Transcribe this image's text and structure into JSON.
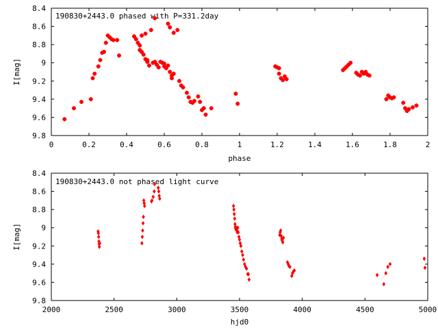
{
  "chart_data": [
    {
      "type": "scatter",
      "title": "190830+2443.0 phased with P=331.2day",
      "xlabel": "phase",
      "ylabel": "I[mag]",
      "xlim": [
        0,
        2
      ],
      "ylim": [
        9.8,
        8.4
      ],
      "y_inverted": true,
      "grid": false,
      "xticks": [
        0,
        0.2,
        0.4,
        0.6,
        0.8,
        1,
        1.2,
        1.4,
        1.6,
        1.8,
        2
      ],
      "xtick_labels": [
        "0",
        "0.2",
        "0.4",
        "0.6",
        "0.8",
        "1",
        "1.2",
        "1.4",
        "1.6",
        "1.8",
        "2"
      ],
      "yticks": [
        8.4,
        8.6,
        8.8,
        9,
        9.2,
        9.4,
        9.6,
        9.8
      ],
      "ytick_labels": [
        "8.4",
        "8.6",
        "8.8",
        "9",
        "9.2",
        "9.4",
        "9.6",
        "9.8"
      ],
      "marker_color": "#ff0000",
      "series": [
        {
          "points": [
            [
              0.07,
              9.62
            ],
            [
              0.12,
              9.5
            ],
            [
              0.16,
              9.43
            ],
            [
              0.21,
              9.4
            ],
            [
              0.22,
              9.17
            ],
            [
              0.23,
              9.12
            ],
            [
              0.25,
              9.04
            ],
            [
              0.26,
              8.97
            ],
            [
              0.27,
              8.89
            ],
            [
              0.28,
              8.88
            ],
            [
              0.29,
              8.78
            ],
            [
              0.3,
              8.7
            ],
            [
              0.31,
              8.72
            ],
            [
              0.32,
              8.74
            ],
            [
              0.33,
              8.75
            ],
            [
              0.35,
              8.75
            ],
            [
              0.36,
              8.92
            ],
            [
              0.44,
              8.71
            ],
            [
              0.45,
              8.74
            ],
            [
              0.46,
              8.78
            ],
            [
              0.47,
              8.81
            ],
            [
              0.47,
              8.86
            ],
            [
              0.48,
              8.88
            ],
            [
              0.48,
              8.7
            ],
            [
              0.49,
              8.91
            ],
            [
              0.5,
              8.96
            ],
            [
              0.5,
              8.68
            ],
            [
              0.51,
              8.99
            ],
            [
              0.51,
              8.97
            ],
            [
              0.52,
              9.03
            ],
            [
              0.53,
              8.64
            ],
            [
              0.54,
              9.0
            ],
            [
              0.55,
              8.99
            ],
            [
              0.55,
              8.51
            ],
            [
              0.56,
              9.02
            ],
            [
              0.57,
              9.05
            ],
            [
              0.58,
              8.99
            ],
            [
              0.59,
              9.0
            ],
            [
              0.6,
              9.04
            ],
            [
              0.6,
              9.01
            ],
            [
              0.61,
              9.06
            ],
            [
              0.62,
              9.03
            ],
            [
              0.62,
              8.57
            ],
            [
              0.63,
              9.1
            ],
            [
              0.63,
              8.61
            ],
            [
              0.64,
              9.14
            ],
            [
              0.64,
              9.17
            ],
            [
              0.65,
              8.67
            ],
            [
              0.65,
              9.12
            ],
            [
              0.67,
              8.64
            ],
            [
              0.68,
              9.2
            ],
            [
              0.69,
              9.25
            ],
            [
              0.7,
              9.27
            ],
            [
              0.72,
              9.33
            ],
            [
              0.73,
              9.38
            ],
            [
              0.74,
              9.43
            ],
            [
              0.75,
              9.44
            ],
            [
              0.76,
              9.42
            ],
            [
              0.78,
              9.37
            ],
            [
              0.79,
              9.43
            ],
            [
              0.8,
              9.52
            ],
            [
              0.81,
              9.5
            ],
            [
              0.82,
              9.57
            ],
            [
              0.85,
              9.5
            ],
            [
              0.98,
              9.34
            ],
            [
              0.99,
              9.45
            ],
            [
              1.19,
              9.04
            ],
            [
              1.2,
              9.05
            ],
            [
              1.21,
              9.06
            ],
            [
              1.21,
              9.12
            ],
            [
              1.22,
              9.17
            ],
            [
              1.23,
              9.19
            ],
            [
              1.24,
              9.15
            ],
            [
              1.25,
              9.18
            ],
            [
              1.55,
              9.08
            ],
            [
              1.56,
              9.06
            ],
            [
              1.57,
              9.04
            ],
            [
              1.58,
              9.02
            ],
            [
              1.59,
              9.0
            ],
            [
              1.62,
              9.11
            ],
            [
              1.63,
              9.13
            ],
            [
              1.64,
              9.14
            ],
            [
              1.65,
              9.1
            ],
            [
              1.66,
              9.12
            ],
            [
              1.67,
              9.1
            ],
            [
              1.68,
              9.13
            ],
            [
              1.69,
              9.14
            ],
            [
              1.78,
              9.4
            ],
            [
              1.79,
              9.36
            ],
            [
              1.8,
              9.38
            ],
            [
              1.81,
              9.39
            ],
            [
              1.82,
              9.38
            ],
            [
              1.87,
              9.44
            ],
            [
              1.88,
              9.5
            ],
            [
              1.89,
              9.53
            ],
            [
              1.9,
              9.51
            ],
            [
              1.92,
              9.49
            ],
            [
              1.94,
              9.47
            ]
          ]
        }
      ]
    },
    {
      "type": "scatter",
      "title": "190830+2443.0 not phased light curve",
      "xlabel": "hjd0",
      "ylabel": "I[mag]",
      "xlim": [
        2000,
        5000
      ],
      "ylim": [
        9.8,
        8.4
      ],
      "y_inverted": true,
      "grid": false,
      "xticks": [
        2000,
        2500,
        3000,
        3500,
        4000,
        4500,
        5000
      ],
      "xtick_labels": [
        "2000",
        "2500",
        "3000",
        "3500",
        "4000",
        "4500",
        "5000"
      ],
      "yticks": [
        8.4,
        8.6,
        8.8,
        9,
        9.2,
        9.4,
        9.6,
        9.8
      ],
      "ytick_labels": [
        "8.4",
        "8.6",
        "8.8",
        "9",
        "9.2",
        "9.4",
        "9.6",
        "9.8"
      ],
      "marker_color": "#ff0000",
      "series": [
        {
          "points": [
            [
              2373,
              9.04
            ],
            [
              2375,
              9.06
            ],
            [
              2377,
              9.1
            ],
            [
              2379,
              9.15
            ],
            [
              2381,
              9.18
            ],
            [
              2383,
              9.21
            ],
            [
              2386,
              9.17
            ],
            [
              2722,
              9.17
            ],
            [
              2725,
              9.1
            ],
            [
              2728,
              9.03
            ],
            [
              2731,
              8.95
            ],
            [
              2734,
              8.88
            ],
            [
              2737,
              8.7
            ],
            [
              2740,
              8.73
            ],
            [
              2743,
              8.76
            ],
            [
              2798,
              8.71
            ],
            [
              2802,
              8.7
            ],
            [
              2812,
              8.66
            ],
            [
              2820,
              8.6
            ],
            [
              2823,
              8.52
            ],
            [
              2852,
              8.56
            ],
            [
              2856,
              8.6
            ],
            [
              2860,
              8.65
            ],
            [
              2864,
              8.68
            ],
            [
              3452,
              8.76
            ],
            [
              3455,
              8.8
            ],
            [
              3458,
              8.85
            ],
            [
              3461,
              8.9
            ],
            [
              3464,
              8.96
            ],
            [
              3466,
              8.99
            ],
            [
              3469,
              9.01
            ],
            [
              3472,
              9.02
            ],
            [
              3475,
              9.0
            ],
            [
              3478,
              9.03
            ],
            [
              3482,
              9.05
            ],
            [
              3486,
              9.0
            ],
            [
              3490,
              9.05
            ],
            [
              3495,
              9.1
            ],
            [
              3500,
              9.13
            ],
            [
              3505,
              9.17
            ],
            [
              3511,
              9.2
            ],
            [
              3518,
              9.26
            ],
            [
              3525,
              9.3
            ],
            [
              3532,
              9.35
            ],
            [
              3540,
              9.4
            ],
            [
              3548,
              9.43
            ],
            [
              3556,
              9.45
            ],
            [
              3565,
              9.51
            ],
            [
              3571,
              9.51
            ],
            [
              3576,
              9.57
            ],
            [
              3820,
              9.08
            ],
            [
              3824,
              9.05
            ],
            [
              3828,
              9.03
            ],
            [
              3832,
              9.09
            ],
            [
              3836,
              9.12
            ],
            [
              3840,
              9.14
            ],
            [
              3845,
              9.16
            ],
            [
              3850,
              9.11
            ],
            [
              3882,
              9.38
            ],
            [
              3888,
              9.4
            ],
            [
              3894,
              9.42
            ],
            [
              3902,
              9.43
            ],
            [
              3916,
              9.53
            ],
            [
              3922,
              9.5
            ],
            [
              3930,
              9.48
            ],
            [
              3937,
              9.47
            ],
            [
              4597,
              9.52
            ],
            [
              4650,
              9.62
            ],
            [
              4666,
              9.5
            ],
            [
              4682,
              9.43
            ],
            [
              4700,
              9.4
            ],
            [
              4972,
              9.34
            ],
            [
              4978,
              9.44
            ]
          ]
        }
      ]
    }
  ]
}
